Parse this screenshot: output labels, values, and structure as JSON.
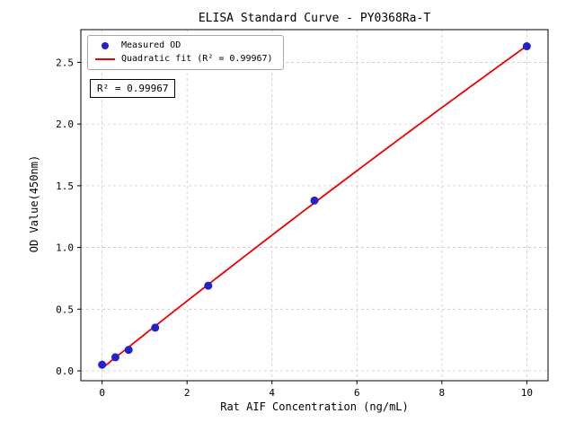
{
  "chart_data": {
    "type": "scatter",
    "title": "ELISA Standard Curve - PY0368Ra-T",
    "xlabel": "Rat AIF Concentration (ng/mL)",
    "ylabel": "OD Value(450nm)",
    "xlim": [
      -0.5,
      10.5
    ],
    "ylim": [
      -0.08,
      2.765
    ],
    "xticks": [
      0,
      2,
      4,
      6,
      8,
      10
    ],
    "yticks": [
      0,
      0.5,
      1.0,
      1.5,
      2.0,
      2.5
    ],
    "xtick_labels": [
      "0",
      "2",
      "4",
      "6",
      "8",
      "10"
    ],
    "ytick_labels": [
      "0.0",
      "0.5",
      "1.0",
      "1.5",
      "2.0",
      "2.5"
    ],
    "grid": true,
    "grid_style": "dashed",
    "points": {
      "x": [
        0,
        0.313,
        0.625,
        1.25,
        2.5,
        5,
        10
      ],
      "y": [
        0.05,
        0.11,
        0.17,
        0.35,
        0.69,
        1.38,
        2.63
      ]
    },
    "fit": {
      "type": "quadratic",
      "r_squared": "0.99967"
    },
    "legend": {
      "position": "upper-left",
      "entries": [
        {
          "marker": "dot",
          "label": "Measured OD"
        },
        {
          "marker": "line",
          "label": "Quadratic fit (R² = 0.99967)"
        }
      ]
    },
    "annotation": "R² = 0.99967",
    "colors": {
      "points": "#2222cc",
      "fit_line": "#ee0000",
      "grid": "#c9c9c9",
      "axis": "#000000",
      "text": "#000000"
    }
  }
}
